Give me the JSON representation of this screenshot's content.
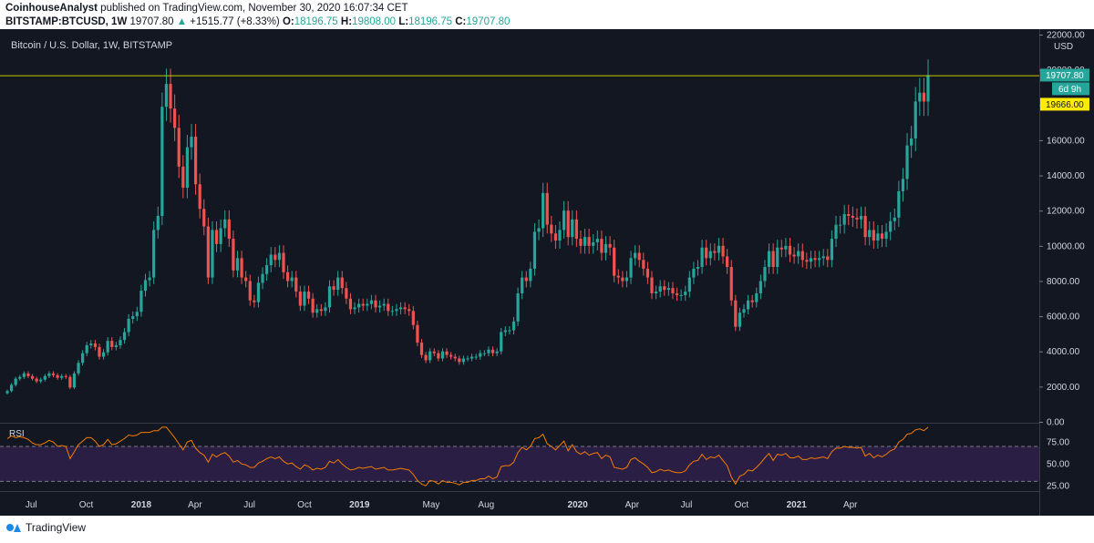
{
  "header": {
    "author": "CoinhouseAnalyst",
    "published_text": "published on TradingView.com, November 30, 2020 16:07:34 CET",
    "symbol": "BITSTAMP:BTCUSD, 1W",
    "last": "19707.80",
    "change": "+1515.77 (+8.33%)",
    "o_label": "O:",
    "o": "18196.75",
    "h_label": "H:",
    "h": "19808.00",
    "l_label": "L:",
    "l": "18196.75",
    "c_label": "C:",
    "c": "19707.80"
  },
  "footer": {
    "brand": "TradingView"
  },
  "colors": {
    "background": "#131722",
    "up": "#26a69a",
    "down": "#ef5350",
    "rsi_line": "#f57c00",
    "rsi_band": "#2a1e44",
    "hline": "#c8c800",
    "price_tag_yellow": "#ffeb00"
  },
  "chart_data": {
    "type": "candlestick",
    "title": "Bitcoin / U.S. Dollar, 1W, BITSTAMP",
    "currency": "USD",
    "ylim": [
      0,
      22000
    ],
    "y_ticks": [
      "22000.00",
      "20000.00",
      "18000.00",
      "16000.00",
      "14000.00",
      "12000.00",
      "10000.00",
      "8000.00",
      "6000.00",
      "4000.00",
      "2000.00",
      "0.00"
    ],
    "x_ticks": [
      "Jul",
      "Oct",
      "2018",
      "Apr",
      "Jul",
      "Oct",
      "2019",
      "May",
      "Aug",
      "2020",
      "Apr",
      "Jul",
      "Oct",
      "2021",
      "Apr"
    ],
    "x_ticks_bold": [
      "2018",
      "2019",
      "2020",
      "2021"
    ],
    "time_range": [
      "2017-05-22",
      "2020-11-30"
    ],
    "x_tick_dates": [
      "2017-07-01",
      "2017-10-01",
      "2018-01-01",
      "2018-04-01",
      "2018-07-01",
      "2018-10-01",
      "2019-01-01",
      "2019-05-01",
      "2019-08-01",
      "2020-01-01",
      "2020-04-01",
      "2020-07-01",
      "2020-10-01",
      "2021-01-01",
      "2021-04-01"
    ],
    "horizontal_line": 19666.0,
    "price_labels": [
      {
        "text": "19707.80",
        "kind": "last"
      },
      {
        "text": "6d 9h",
        "kind": "countdown"
      },
      {
        "text": "19666.00",
        "kind": "line"
      }
    ],
    "candles_close": [
      1750,
      2100,
      2450,
      2550,
      2750,
      2600,
      2450,
      2300,
      2400,
      2600,
      2750,
      2650,
      2500,
      2600,
      2550,
      1950,
      2750,
      3350,
      3900,
      4350,
      4450,
      4250,
      3700,
      3950,
      4600,
      4250,
      4350,
      4650,
      5100,
      5850,
      6000,
      6250,
      7450,
      8050,
      8200,
      10900,
      11700,
      17900,
      19200,
      17800,
      16700,
      14500,
      13300,
      15600,
      16200,
      13500,
      12100,
      11100,
      8200,
      10900,
      10100,
      11000,
      11500,
      10400,
      8600,
      9300,
      8200,
      8000,
      6900,
      6800,
      7900,
      8400,
      8900,
      9500,
      9200,
      9600,
      8500,
      8000,
      8200,
      7400,
      6600,
      7400,
      7000,
      6200,
      6400,
      6300,
      6500,
      7700,
      7500,
      8200,
      7600,
      7000,
      6400,
      6500,
      6700,
      6600,
      6700,
      6900,
      6500,
      6600,
      6700,
      6300,
      6300,
      6400,
      6500,
      6400,
      6300,
      5500,
      4500,
      3800,
      3500,
      4000,
      3900,
      3600,
      4000,
      3800,
      3700,
      3600,
      3400,
      3600,
      3600,
      3700,
      3700,
      3900,
      3900,
      4100,
      3900,
      4000,
      5100,
      5200,
      5200,
      5700,
      7300,
      8200,
      8000,
      8700,
      10800,
      11000,
      13000,
      11200,
      10700,
      10300,
      10900,
      12000,
      10500,
      11500,
      10400,
      10000,
      10500,
      10000,
      10200,
      10400,
      9600,
      10100,
      9900,
      8300,
      8200,
      8000,
      8200,
      9300,
      9600,
      9200,
      8700,
      8200,
      7300,
      7400,
      7700,
      7500,
      7600,
      7300,
      7200,
      7200,
      7400,
      8200,
      8700,
      8800,
      9900,
      9300,
      9700,
      9600,
      10000,
      9400,
      8800,
      6900,
      5400,
      6200,
      6400,
      6900,
      6800,
      7300,
      8000,
      8800,
      9700,
      8800,
      9900,
      9800,
      10000,
      9500,
      9400,
      9700,
      9200,
      9100,
      9300,
      9200,
      9300,
      9400,
      9200,
      10400,
      11200,
      11200,
      11800,
      11700,
      11600,
      11500,
      11700,
      10500,
      10900,
      10300,
      10700,
      10400,
      10800,
      11400,
      11600,
      13100,
      13800,
      15700,
      16100,
      18200,
      18700,
      18200,
      19700
    ],
    "rsi": {
      "label": "RSI",
      "ylim": [
        20,
        95
      ],
      "ticks": [
        "75.00",
        "50.00",
        "25.00"
      ],
      "bands": [
        70,
        30
      ],
      "values": [
        79,
        82,
        80,
        81,
        80,
        78,
        74,
        72,
        72,
        74,
        77,
        75,
        70,
        71,
        70,
        56,
        64,
        72,
        76,
        80,
        80,
        76,
        70,
        72,
        78,
        72,
        73,
        76,
        79,
        83,
        82,
        83,
        86,
        86,
        86,
        88,
        88,
        92,
        92,
        86,
        80,
        73,
        66,
        75,
        77,
        68,
        63,
        60,
        52,
        61,
        58,
        61,
        63,
        59,
        52,
        54,
        50,
        49,
        46,
        46,
        51,
        53,
        56,
        58,
        56,
        58,
        53,
        50,
        51,
        47,
        44,
        49,
        47,
        43,
        45,
        44,
        46,
        53,
        51,
        55,
        50,
        46,
        43,
        44,
        46,
        45,
        46,
        47,
        44,
        45,
        46,
        43,
        43,
        44,
        45,
        44,
        43,
        38,
        31,
        27,
        25,
        31,
        30,
        27,
        31,
        29,
        29,
        28,
        26,
        29,
        29,
        31,
        31,
        33,
        33,
        36,
        33,
        35,
        47,
        48,
        48,
        52,
        63,
        69,
        66,
        70,
        79,
        80,
        84,
        73,
        70,
        66,
        71,
        76,
        65,
        72,
        64,
        61,
        64,
        60,
        62,
        63,
        56,
        60,
        58,
        46,
        45,
        44,
        46,
        55,
        57,
        53,
        50,
        46,
        40,
        41,
        44,
        42,
        43,
        41,
        40,
        40,
        42,
        49,
        53,
        54,
        61,
        55,
        58,
        57,
        60,
        54,
        48,
        35,
        27,
        36,
        38,
        43,
        42,
        46,
        51,
        57,
        62,
        54,
        61,
        60,
        62,
        57,
        57,
        59,
        55,
        55,
        57,
        56,
        57,
        58,
        56,
        64,
        68,
        68,
        70,
        69,
        69,
        68,
        69,
        59,
        62,
        57,
        60,
        58,
        61,
        65,
        67,
        75,
        78,
        84,
        85,
        89,
        90,
        88,
        92
      ]
    }
  }
}
